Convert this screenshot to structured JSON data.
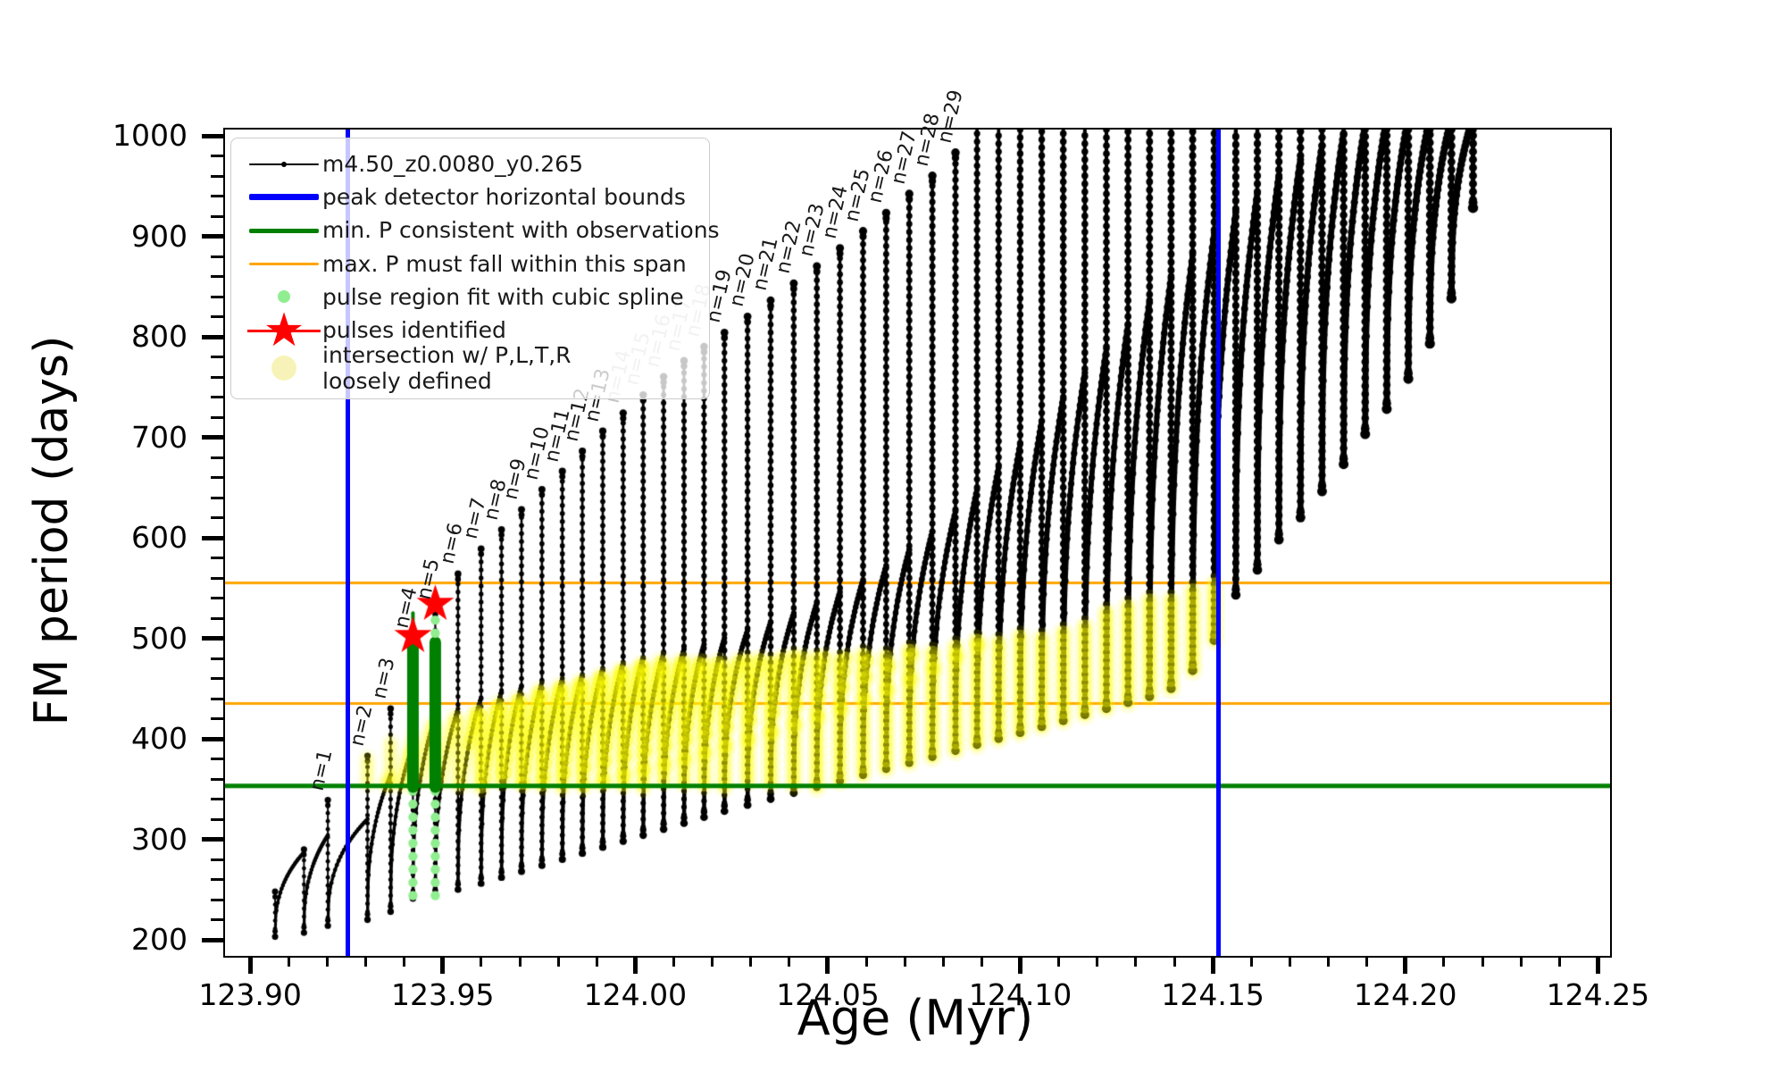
{
  "chart_data": {
    "type": "line",
    "title": "",
    "xlabel": "Age (Myr)",
    "ylabel": "FM period (days)",
    "axes": {
      "xlim": [
        123.893,
        124.2527
      ],
      "ylim": [
        186,
        1008
      ],
      "x_major_ticks": [
        123.9,
        123.95,
        124.0,
        124.05,
        124.1,
        124.15,
        124.2,
        124.25
      ],
      "x_tick_labels": [
        "123.90",
        "123.95",
        "124.00",
        "124.05",
        "124.10",
        "124.15",
        "124.20",
        "124.25"
      ],
      "x_minor_step": 0.01,
      "y_major_ticks": [
        200,
        300,
        400,
        500,
        600,
        700,
        800,
        900,
        1000
      ],
      "y_tick_labels": [
        "200",
        "300",
        "400",
        "500",
        "600",
        "700",
        "800",
        "900",
        "1000"
      ],
      "y_minor_step": 20,
      "grid": false
    },
    "series_label": "m4.50_z0.0080_y0.265",
    "ref_lines": {
      "peak_detector_bounds_x": [
        123.9249,
        124.151
      ],
      "min_p_consistent_y": 355,
      "max_p_span_y": [
        437,
        557
      ]
    },
    "pulse_cycles": {
      "columns": [
        "n",
        "age_myr",
        "arc_peak_period_at_spike",
        "spike_top_period",
        "spike_min_period"
      ],
      "rows": [
        [
          0,
          123.906,
          247,
          250,
          205
        ],
        [
          0,
          123.9135,
          289,
          292,
          209
        ],
        [
          1,
          123.9197,
          306,
          341,
          216
        ],
        [
          2,
          123.93,
          322,
          385,
          222
        ],
        [
          3,
          123.936,
          366,
          432,
          230
        ],
        [
          4,
          123.9418,
          396,
          502,
          243
        ],
        [
          5,
          123.9476,
          424,
          531,
          246
        ],
        [
          6,
          123.9535,
          432,
          566,
          252
        ],
        [
          7,
          123.9595,
          443,
          591,
          258
        ],
        [
          8,
          123.9648,
          450,
          610,
          264
        ],
        [
          9,
          123.97,
          455,
          630,
          270
        ],
        [
          10,
          123.9753,
          458,
          650,
          276
        ],
        [
          11,
          123.9806,
          462,
          668,
          282
        ],
        [
          12,
          123.9858,
          466,
          688,
          288
        ],
        [
          13,
          123.9911,
          472,
          708,
          294
        ],
        [
          14,
          123.9964,
          478,
          726,
          300
        ],
        [
          15,
          124.0016,
          483,
          744,
          306
        ],
        [
          16,
          124.0069,
          487,
          762,
          312
        ],
        [
          17,
          124.0122,
          491,
          778,
          318
        ],
        [
          18,
          124.0174,
          496,
          792,
          324
        ],
        [
          19,
          124.0227,
          502,
          806,
          330
        ],
        [
          20,
          124.0287,
          510,
          822,
          336
        ],
        [
          21,
          124.0347,
          518,
          838,
          342
        ],
        [
          22,
          124.0407,
          527,
          855,
          348
        ],
        [
          23,
          124.0467,
          537,
          872,
          354
        ],
        [
          24,
          124.0527,
          548,
          890,
          360
        ],
        [
          25,
          124.0587,
          560,
          907,
          366
        ],
        [
          26,
          124.0647,
          574,
          925,
          372
        ],
        [
          27,
          124.0707,
          590,
          944,
          378
        ],
        [
          28,
          124.0767,
          608,
          962,
          384
        ],
        [
          29,
          124.0827,
          628,
          985,
          390
        ],
        [
          30,
          124.0883,
          650,
          1020,
          396
        ],
        [
          31,
          124.0939,
          672,
          1020,
          402
        ],
        [
          32,
          124.0995,
          695,
          1020,
          408
        ],
        [
          33,
          124.1051,
          718,
          1020,
          414
        ],
        [
          34,
          124.1107,
          742,
          1020,
          420
        ],
        [
          35,
          124.1163,
          766,
          1020,
          426
        ],
        [
          36,
          124.1219,
          790,
          1020,
          432
        ],
        [
          37,
          124.1275,
          814,
          1020,
          438
        ],
        [
          38,
          124.1331,
          838,
          1020,
          444
        ],
        [
          39,
          124.1387,
          862,
          1020,
          452
        ],
        [
          40,
          124.1443,
          884,
          1020,
          470
        ],
        [
          41,
          124.1499,
          906,
          1020,
          500
        ],
        [
          42,
          124.1555,
          926,
          1020,
          545
        ],
        [
          43,
          124.1611,
          945,
          1020,
          570
        ],
        [
          44,
          124.1667,
          962,
          1020,
          600
        ],
        [
          45,
          124.1723,
          978,
          1020,
          622
        ],
        [
          46,
          124.1779,
          992,
          1020,
          648
        ],
        [
          47,
          124.1835,
          1004,
          1020,
          675
        ],
        [
          48,
          124.1891,
          1014,
          1020,
          705
        ],
        [
          49,
          124.1947,
          1020,
          1020,
          730
        ],
        [
          50,
          124.2003,
          1020,
          1020,
          760
        ],
        [
          51,
          124.2059,
          1020,
          1020,
          795
        ],
        [
          52,
          124.2115,
          1020,
          1020,
          840
        ],
        [
          53,
          124.2171,
          1020,
          1020,
          930
        ]
      ]
    },
    "pulse_labels": [
      {
        "n": 1,
        "text": "n=1",
        "muted": false
      },
      {
        "n": 2,
        "text": "n=2",
        "muted": false
      },
      {
        "n": 3,
        "text": "n=3",
        "muted": false
      },
      {
        "n": 4,
        "text": "n=4",
        "muted": false
      },
      {
        "n": 5,
        "text": "n=5",
        "muted": false
      },
      {
        "n": 6,
        "text": "n=6",
        "muted": false
      },
      {
        "n": 7,
        "text": "n=7",
        "muted": false
      },
      {
        "n": 8,
        "text": "n=8",
        "muted": false
      },
      {
        "n": 9,
        "text": "n=9",
        "muted": false
      },
      {
        "n": 10,
        "text": "n=10",
        "muted": false
      },
      {
        "n": 11,
        "text": "n=11",
        "muted": false
      },
      {
        "n": 12,
        "text": "n=12",
        "muted": false
      },
      {
        "n": 13,
        "text": "n=13",
        "muted": false
      },
      {
        "n": 14,
        "text": "n=14",
        "muted": true
      },
      {
        "n": 15,
        "text": "n=15",
        "muted": true
      },
      {
        "n": 16,
        "text": "n=16",
        "muted": true
      },
      {
        "n": 17,
        "text": "n=17",
        "muted": true
      },
      {
        "n": 18,
        "text": "n=18",
        "muted": true
      },
      {
        "n": 19,
        "text": "n=19",
        "muted": false
      },
      {
        "n": 20,
        "text": "n=20",
        "muted": false
      },
      {
        "n": 21,
        "text": "n=21",
        "muted": false
      },
      {
        "n": 22,
        "text": "n=22",
        "muted": false
      },
      {
        "n": 23,
        "text": "n=23",
        "muted": false
      },
      {
        "n": 24,
        "text": "n=24",
        "muted": false
      },
      {
        "n": 25,
        "text": "n=25",
        "muted": false
      },
      {
        "n": 26,
        "text": "n=26",
        "muted": false
      },
      {
        "n": 27,
        "text": "n=27",
        "muted": false
      },
      {
        "n": 28,
        "text": "n=28",
        "muted": false
      },
      {
        "n": 29,
        "text": "n=29",
        "muted": false
      }
    ],
    "spline_fit_columns": [
      {
        "age": 123.9418,
        "lower_from": 246,
        "lower_to": 352,
        "upper_dots": [
          505
        ]
      },
      {
        "age": 123.9476,
        "lower_from": 246,
        "lower_to": 352,
        "upper_dots": [
          507,
          520,
          534
        ]
      }
    ],
    "green_bars": [
      {
        "age": 123.9418,
        "p0": 354,
        "p1": 500
      },
      {
        "age": 123.9476,
        "p0": 354,
        "p1": 498
      }
    ],
    "green_bar_tips": [
      {
        "age": 123.9418,
        "p0": 500,
        "p1": 527
      }
    ],
    "pulses_identified": [
      {
        "age": 123.9418,
        "period": 504
      },
      {
        "age": 123.9476,
        "period": 536
      }
    ],
    "yellow_region": {
      "age_range": [
        123.925,
        124.151
      ],
      "p_min": 354,
      "p_top_anchors": [
        [
          123.925,
          385
        ],
        [
          123.958,
          432
        ],
        [
          124.0,
          478
        ],
        [
          124.05,
          486
        ],
        [
          124.07,
          492
        ],
        [
          124.11,
          512
        ],
        [
          124.132,
          542
        ],
        [
          124.151,
          558
        ]
      ],
      "pale_before_age": 123.956
    }
  },
  "legend": {
    "entries": [
      {
        "marker": "line-dot",
        "color": "#000000",
        "lw": 2,
        "label": "m4.50_z0.0080_y0.265"
      },
      {
        "marker": "line",
        "color": "#0000FF",
        "lw": 7,
        "label": "peak detector horizontal bounds"
      },
      {
        "marker": "line",
        "color": "#008000",
        "lw": 5,
        "label": "min. P consistent with observations"
      },
      {
        "marker": "line",
        "color": "#FFA500",
        "lw": 3,
        "label": "max. P must fall within this span"
      },
      {
        "marker": "dot",
        "color": "#90EE90",
        "size": 14,
        "label": "pulse region fit with cubic spline"
      },
      {
        "marker": "star",
        "color": "#FF0000",
        "label": "pulses identified"
      },
      {
        "marker": "dot",
        "color": "#F7F3B8",
        "size": 28,
        "label": "intersection w/ P,L,T,R",
        "label2": "loosely defined"
      }
    ]
  },
  "colors": {
    "curve": "#000000",
    "peak_bounds": "#0000FF",
    "min_p": "#008000",
    "max_p_span": "#FFA500",
    "spline_dots": "#90EE90",
    "pulse_bars": "#008000",
    "stars": "#FF0000",
    "intersection": "#FFFF00",
    "muted_label": "#c3c3c3",
    "label": "#1a1a1a"
  }
}
